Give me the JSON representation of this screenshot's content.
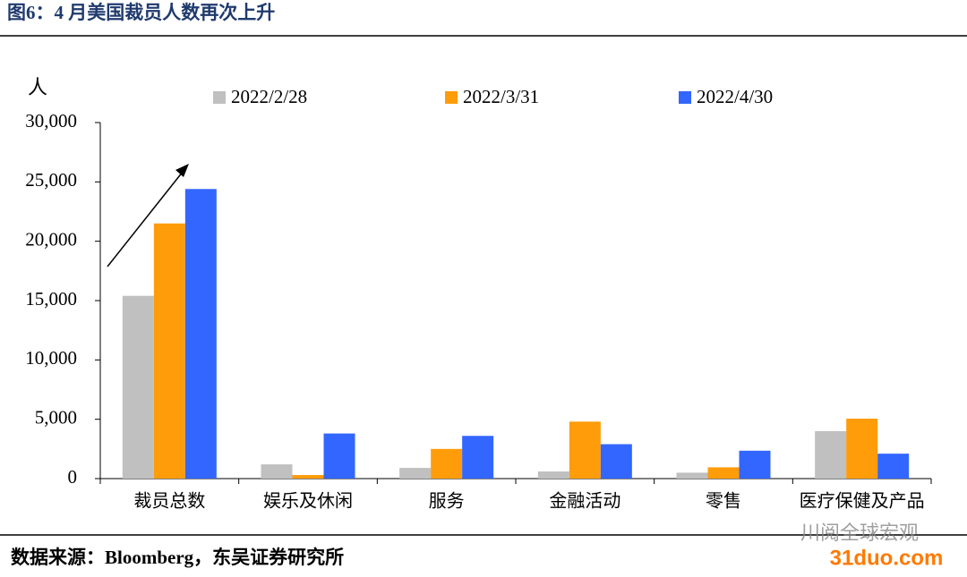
{
  "title": "图6：4 月美国裁员人数再次上升",
  "chart_data": {
    "type": "bar",
    "y_label": "人",
    "categories": [
      "裁员总数",
      "娱乐及休闲",
      "服务",
      "金融活动",
      "零售",
      "医疗保健及产品"
    ],
    "series": [
      {
        "name": "2022/2/28",
        "color": "#c0c0c0",
        "values": [
          15400,
          1200,
          900,
          600,
          500,
          4000
        ]
      },
      {
        "name": "2022/3/31",
        "color": "#ff9c0a",
        "values": [
          21500,
          300,
          2500,
          4800,
          950,
          5050
        ]
      },
      {
        "name": "2022/4/30",
        "color": "#3366ff",
        "values": [
          24400,
          3800,
          3600,
          2900,
          2350,
          2100
        ]
      }
    ],
    "ylim": [
      0,
      30000
    ],
    "yticks": [
      0,
      {
        "value": 5000,
        "label": "5,000"
      },
      {
        "value": 10000,
        "label": "10,000"
      },
      {
        "value": 15000,
        "label": "15,000"
      },
      {
        "value": 20000,
        "label": "20,000"
      },
      {
        "value": 25000,
        "label": "25,000"
      },
      {
        "value": 30000,
        "label": "30,000"
      }
    ],
    "legend": "top"
  },
  "source": "数据来源：Bloomberg，东吴证券研究所",
  "watermark": [
    "川阅全球宏观",
    "31duo.com"
  ]
}
